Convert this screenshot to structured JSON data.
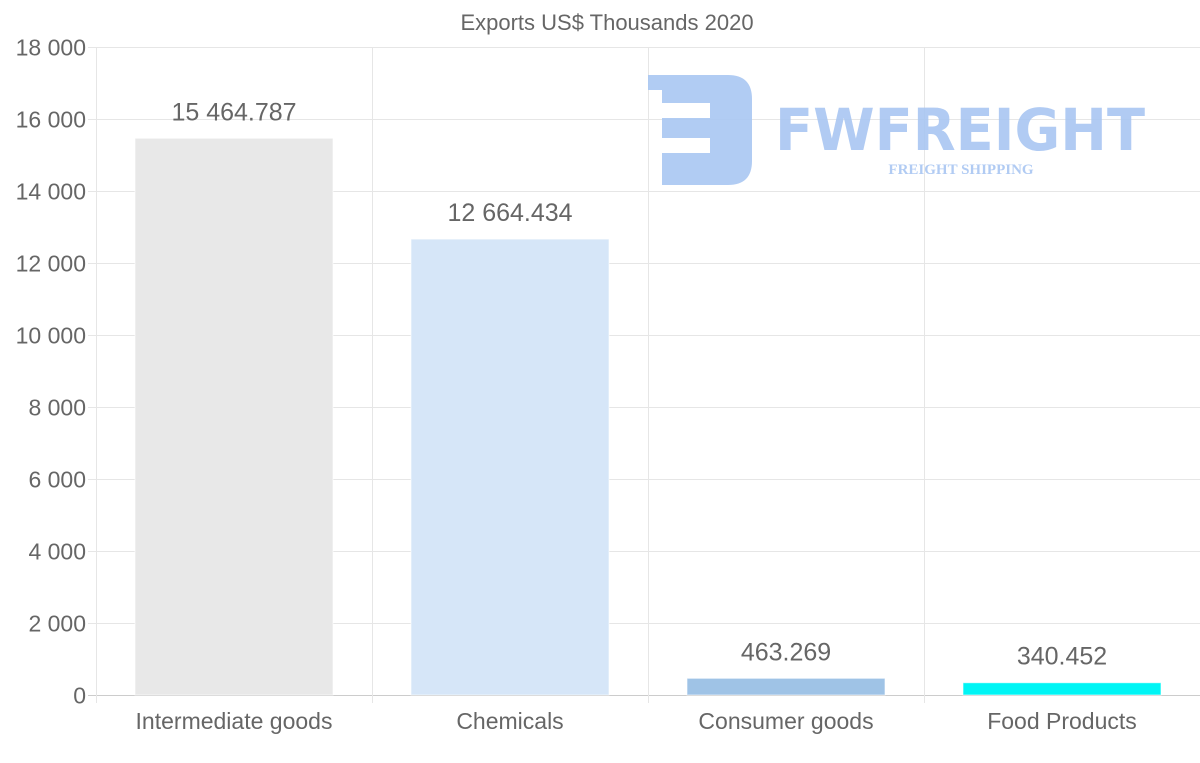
{
  "chart_data": {
    "type": "bar",
    "title": "Exports US$ Thousands 2020",
    "categories": [
      "Intermediate goods",
      "Chemicals",
      "Consumer goods",
      "Food Products"
    ],
    "values": [
      15464.787,
      12664.434,
      463.269,
      340.452
    ],
    "value_labels": [
      "15 464.787",
      "12 664.434",
      "463.269",
      "340.452"
    ],
    "colors": [
      "#e8e8e8",
      "#d6e6f8",
      "#9fc3e6",
      "#00f5f5"
    ],
    "ylim": [
      0,
      18000
    ],
    "yticks": [
      0,
      2000,
      4000,
      6000,
      8000,
      10000,
      12000,
      14000,
      16000,
      18000
    ],
    "ytick_labels": [
      "0",
      "2 000",
      "4 000",
      "6 000",
      "8 000",
      "10 000",
      "12 000",
      "14 000",
      "16 000",
      "18 000"
    ],
    "xlabel": "",
    "ylabel": "",
    "grid": true,
    "legend": "none"
  },
  "watermark": {
    "brand": "FWFREIGHT",
    "tagline": "FREIGHT SHIPPING",
    "color": "#a9c6f2"
  }
}
